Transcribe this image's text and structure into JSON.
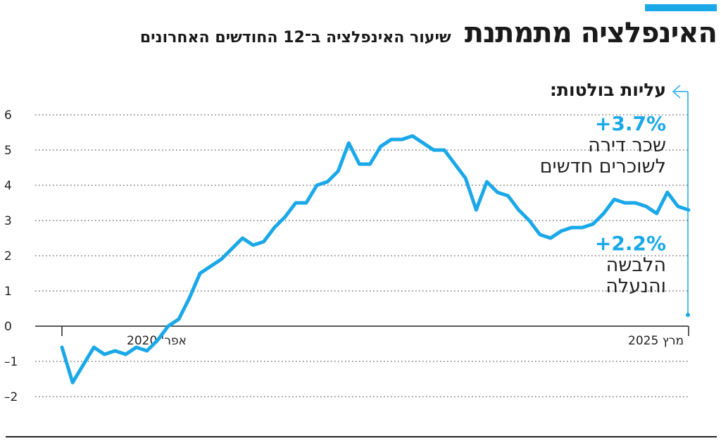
{
  "header": {
    "title": "האינפלציה מתמתנת",
    "subtitle": "שיעור האינפלציה ב־12 החודשים האחרונים"
  },
  "highlights": {
    "title": "עליות בולטות:",
    "items": [
      {
        "value": "+3.7%",
        "label_line1": "שכר דירה",
        "label_line2": "לשוכרים חדשים"
      },
      {
        "value": "+2.2%",
        "label_line1": "הלבשה",
        "label_line2": "והנעלה"
      }
    ]
  },
  "colors": {
    "accent": "#1aa8e8",
    "text": "#1a1a1a",
    "grid": "#555555"
  },
  "chart_data": {
    "type": "line",
    "ylim": [
      -2,
      6
    ],
    "yticks": [
      6,
      5,
      4,
      3,
      2,
      1,
      0,
      -1,
      -2
    ],
    "ytick_labels": [
      "6",
      "5",
      "4",
      "3",
      "2",
      "1",
      "0",
      "–1",
      "–2"
    ],
    "x_start_label": "אפר' 2020",
    "x_end_label": "מרץ 2025",
    "grid": "dotted horizontal",
    "series": [
      {
        "values": [
          -0.6,
          -1.6,
          -1.1,
          -0.6,
          -0.8,
          -0.7,
          -0.8,
          -0.6,
          -0.7,
          -0.4,
          0.0,
          0.2,
          0.8,
          1.5,
          1.7,
          1.9,
          2.2,
          2.5,
          2.3,
          2.4,
          2.8,
          3.1,
          3.5,
          3.5,
          4.0,
          4.1,
          4.4,
          5.2,
          4.6,
          4.6,
          5.1,
          5.3,
          5.3,
          5.4,
          5.2,
          5.0,
          5.0,
          4.6,
          4.2,
          3.3,
          4.1,
          3.8,
          3.7,
          3.3,
          3.0,
          2.6,
          2.5,
          2.7,
          2.8,
          2.8,
          2.9,
          3.2,
          3.6,
          3.5,
          3.5,
          3.4,
          3.2,
          3.8,
          3.4,
          3.3
        ]
      }
    ]
  }
}
